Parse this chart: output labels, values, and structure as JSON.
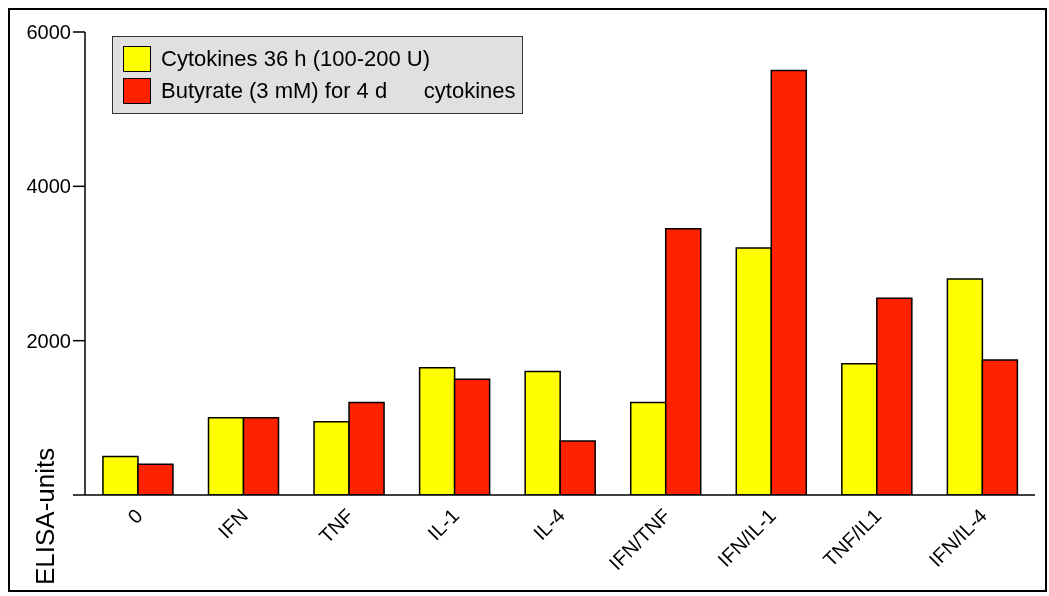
{
  "chart_data": {
    "type": "bar",
    "ylabel": "ELISA-units",
    "categories": [
      "0",
      "IFN",
      "TNF",
      "IL-1",
      "IL-4",
      "IFN/TNF",
      "IFN/IL-1",
      "TNF/IL1",
      "IFN/IL-4"
    ],
    "series": [
      {
        "name": "Cytokines 36 h (100-200 U)",
        "color": "#ffff00",
        "values": [
          500,
          1000,
          950,
          1650,
          1600,
          1200,
          3200,
          1700,
          2800
        ]
      },
      {
        "name": "Butyrate (3 mM) for 4 d      cytokines",
        "color": "#ff2200",
        "values": [
          400,
          1000,
          1200,
          1500,
          700,
          3450,
          5500,
          2550,
          1750
        ]
      }
    ],
    "ylim": [
      0,
      6000
    ],
    "yticks": [
      {
        "value": 0,
        "label": null
      },
      2000,
      4000,
      6000
    ],
    "legend": "top left"
  }
}
